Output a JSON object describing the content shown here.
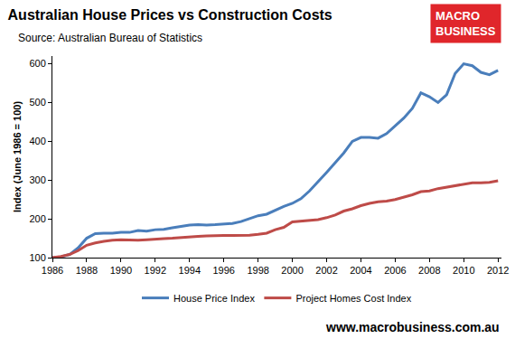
{
  "chart_data": {
    "type": "line",
    "title": "Australian House Prices vs Construction Costs",
    "subtitle": "Source: Australian Bureau of Statistics",
    "y_label": "Index (June 1986 = 100)",
    "footer": "www.macrobusiness.com.au",
    "logo": [
      "MACRO",
      "BUSINESS"
    ],
    "x": [
      1986,
      1986.5,
      1987,
      1987.5,
      1988,
      1988.5,
      1989,
      1989.5,
      1990,
      1990.5,
      1991,
      1991.5,
      1992,
      1992.5,
      1993,
      1993.5,
      1994,
      1994.5,
      1995,
      1995.5,
      1996,
      1996.5,
      1997,
      1997.5,
      1998,
      1998.5,
      1999,
      1999.5,
      2000,
      2000.5,
      2001,
      2001.5,
      2002,
      2002.5,
      2003,
      2003.5,
      2004,
      2004.5,
      2005,
      2005.5,
      2006,
      2006.5,
      2007,
      2007.5,
      2008,
      2008.5,
      2009,
      2009.5,
      2010,
      2010.5,
      2011,
      2011.5,
      2012
    ],
    "series": [
      {
        "name": "House Price Index",
        "color": "#4a7ebb",
        "values": [
          100,
          102,
          108,
          125,
          150,
          162,
          163,
          163,
          165,
          165,
          170,
          168,
          172,
          173,
          177,
          180,
          184,
          185,
          184,
          185,
          186,
          188,
          193,
          200,
          208,
          212,
          222,
          232,
          240,
          252,
          272,
          295,
          320,
          345,
          370,
          400,
          410,
          410,
          408,
          420,
          440,
          460,
          485,
          525,
          515,
          500,
          520,
          575,
          600,
          595,
          578,
          572,
          583
        ]
      },
      {
        "name": "Project Homes Cost Index",
        "color": "#be4b48",
        "values": [
          100,
          103,
          108,
          118,
          132,
          138,
          142,
          145,
          146,
          145,
          145,
          146,
          148,
          149,
          150,
          152,
          154,
          155,
          156,
          157,
          157,
          157,
          157,
          158,
          160,
          163,
          172,
          178,
          192,
          194,
          196,
          198,
          203,
          210,
          220,
          226,
          234,
          240,
          244,
          246,
          250,
          256,
          262,
          270,
          272,
          278,
          282,
          286,
          290,
          293,
          293,
          294,
          298
        ]
      }
    ],
    "xlim": [
      1986,
      2012.2
    ],
    "xticks": [
      1986,
      1988,
      1990,
      1992,
      1994,
      1996,
      1998,
      2000,
      2002,
      2004,
      2006,
      2008,
      2010,
      2012
    ],
    "ylim": [
      100,
      620
    ],
    "yticks": [
      100,
      200,
      300,
      400,
      500,
      600
    ],
    "grid": false,
    "legend": "bottom"
  }
}
